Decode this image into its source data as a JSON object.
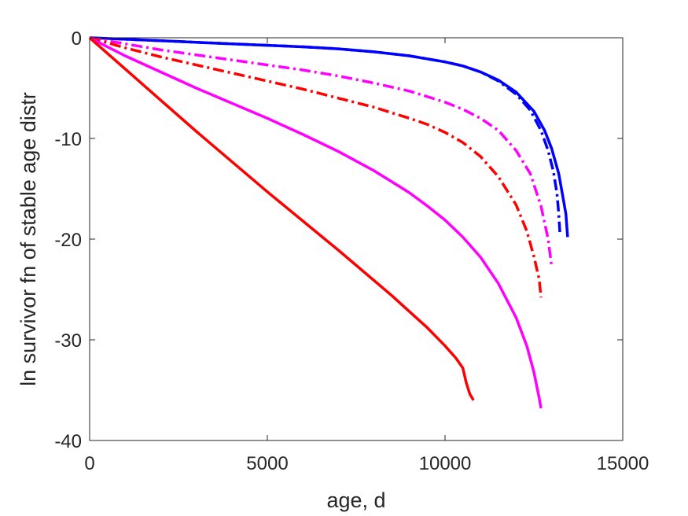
{
  "chart_data": {
    "type": "line",
    "title": "",
    "xlabel": "age, d",
    "ylabel": "ln survivor fn of stable age distr",
    "xlim": [
      0,
      15000
    ],
    "ylim": [
      -40,
      0
    ],
    "xticks": [
      0,
      5000,
      10000,
      15000
    ],
    "yticks": [
      -40,
      -30,
      -20,
      -10,
      0
    ],
    "xtick_labels": [
      "0",
      "5000",
      "10000",
      "15000"
    ],
    "ytick_labels": [
      "-40",
      "-30",
      "-20",
      "-10",
      "0"
    ],
    "grid": false,
    "legend": "none",
    "series": [
      {
        "color": "#0000ff",
        "style": "solid",
        "points": [
          [
            0,
            0
          ],
          [
            2000,
            -0.3
          ],
          [
            4000,
            -0.6
          ],
          [
            6000,
            -0.9
          ],
          [
            7000,
            -1.1
          ],
          [
            8000,
            -1.4
          ],
          [
            9000,
            -1.8
          ],
          [
            10000,
            -2.4
          ],
          [
            10500,
            -2.8
          ],
          [
            11000,
            -3.4
          ],
          [
            11500,
            -4.2
          ],
          [
            12000,
            -5.4
          ],
          [
            12500,
            -7.3
          ],
          [
            12800,
            -9.2
          ],
          [
            13000,
            -11.0
          ],
          [
            13200,
            -13.5
          ],
          [
            13300,
            -15.5
          ],
          [
            13400,
            -17.5
          ],
          [
            13450,
            -19.8
          ]
        ]
      },
      {
        "color": "#0000ff",
        "style": "dashdot",
        "points": [
          [
            0,
            0
          ],
          [
            2000,
            -0.3
          ],
          [
            4000,
            -0.6
          ],
          [
            6000,
            -0.9
          ],
          [
            7000,
            -1.1
          ],
          [
            8000,
            -1.4
          ],
          [
            9000,
            -1.8
          ],
          [
            10000,
            -2.4
          ],
          [
            10500,
            -2.8
          ],
          [
            11000,
            -3.4
          ],
          [
            11500,
            -4.3
          ],
          [
            12000,
            -5.6
          ],
          [
            12400,
            -7.2
          ],
          [
            12700,
            -9.2
          ],
          [
            12900,
            -11.2
          ],
          [
            13050,
            -13.3
          ],
          [
            13150,
            -15.5
          ],
          [
            13200,
            -17.5
          ],
          [
            13230,
            -19.3
          ]
        ]
      },
      {
        "color": "#ff00ff",
        "style": "dashdot",
        "points": [
          [
            0,
            0
          ],
          [
            1000,
            -0.6
          ],
          [
            2000,
            -1.2
          ],
          [
            3000,
            -1.7
          ],
          [
            4000,
            -2.2
          ],
          [
            5000,
            -2.7
          ],
          [
            6000,
            -3.2
          ],
          [
            7000,
            -3.8
          ],
          [
            8000,
            -4.5
          ],
          [
            9000,
            -5.3
          ],
          [
            10000,
            -6.4
          ],
          [
            10500,
            -7.1
          ],
          [
            11000,
            -8.0
          ],
          [
            11500,
            -9.2
          ],
          [
            12000,
            -11.2
          ],
          [
            12400,
            -13.5
          ],
          [
            12700,
            -16.7
          ],
          [
            12900,
            -20.0
          ],
          [
            13000,
            -22.7
          ]
        ]
      },
      {
        "color": "#ff0000",
        "style": "dashdot",
        "points": [
          [
            0,
            0
          ],
          [
            1000,
            -1.0
          ],
          [
            2000,
            -1.9
          ],
          [
            3000,
            -2.7
          ],
          [
            4000,
            -3.5
          ],
          [
            5000,
            -4.3
          ],
          [
            6000,
            -5.1
          ],
          [
            7000,
            -6.0
          ],
          [
            8000,
            -6.9
          ],
          [
            9000,
            -8.0
          ],
          [
            9500,
            -8.6
          ],
          [
            10000,
            -9.4
          ],
          [
            10500,
            -10.4
          ],
          [
            11000,
            -11.8
          ],
          [
            11500,
            -13.8
          ],
          [
            12000,
            -16.6
          ],
          [
            12300,
            -19.2
          ],
          [
            12500,
            -21.7
          ],
          [
            12650,
            -24.0
          ],
          [
            12700,
            -25.8
          ]
        ]
      },
      {
        "color": "#ff00ff",
        "style": "solid",
        "points": [
          [
            0,
            0
          ],
          [
            1000,
            -1.8
          ],
          [
            2000,
            -3.4
          ],
          [
            3000,
            -5.0
          ],
          [
            4000,
            -6.5
          ],
          [
            5000,
            -8.0
          ],
          [
            6000,
            -9.6
          ],
          [
            7000,
            -11.3
          ],
          [
            8000,
            -13.2
          ],
          [
            8500,
            -14.3
          ],
          [
            9000,
            -15.4
          ],
          [
            9500,
            -16.7
          ],
          [
            10000,
            -18.1
          ],
          [
            10500,
            -19.8
          ],
          [
            11000,
            -21.8
          ],
          [
            11500,
            -24.4
          ],
          [
            12000,
            -27.8
          ],
          [
            12300,
            -30.6
          ],
          [
            12500,
            -33.2
          ],
          [
            12650,
            -35.8
          ],
          [
            12700,
            -36.8
          ]
        ]
      },
      {
        "color": "#ff0000",
        "style": "solid",
        "points": [
          [
            0,
            0
          ],
          [
            1000,
            -3.1
          ],
          [
            2000,
            -6.2
          ],
          [
            3000,
            -9.3
          ],
          [
            4000,
            -12.3
          ],
          [
            5000,
            -15.3
          ],
          [
            6000,
            -18.2
          ],
          [
            7000,
            -21.1
          ],
          [
            8000,
            -24.1
          ],
          [
            8500,
            -25.6
          ],
          [
            9000,
            -27.2
          ],
          [
            9500,
            -28.8
          ],
          [
            10000,
            -30.6
          ],
          [
            10300,
            -31.8
          ],
          [
            10500,
            -32.8
          ],
          [
            10600,
            -34.3
          ],
          [
            10700,
            -35.4
          ],
          [
            10800,
            -36.0
          ]
        ]
      }
    ]
  }
}
